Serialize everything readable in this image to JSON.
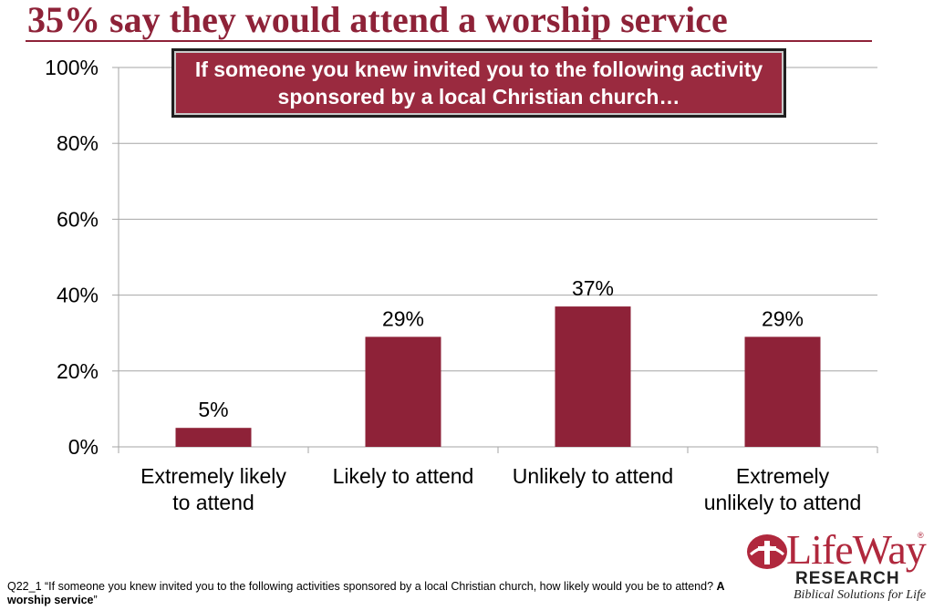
{
  "title": "35% say they would attend a worship service",
  "callout": "If someone you knew invited you to the following activity sponsored by a local Christian church…",
  "footnote": {
    "text": "Q22_1 “If someone you knew invited you to the following activities sponsored by a local Christian church, how likely would you be to attend? ",
    "bold": "A worship service",
    "close": "”"
  },
  "logo": {
    "name": "LifeWay",
    "reg": "®",
    "research": "RESEARCH",
    "tagline": "Biblical Solutions for Life",
    "icon": "church-cross-icon"
  },
  "colors": {
    "bar": "#8e2238",
    "title": "#8e2238",
    "callout_bg": "#9a2a3f",
    "grid": "#a6a6a6"
  },
  "chart_data": {
    "type": "bar",
    "title": "",
    "xlabel": "",
    "ylabel": "",
    "categories": [
      [
        "Extremely likely",
        "to attend"
      ],
      [
        "Likely to attend"
      ],
      [
        "Unlikely to attend"
      ],
      [
        "Extremely",
        "unlikely to attend"
      ]
    ],
    "values": [
      5,
      29,
      37,
      29
    ],
    "data_labels": [
      "5%",
      "29%",
      "37%",
      "29%"
    ],
    "yticks": [
      0,
      20,
      40,
      60,
      80,
      100
    ],
    "ytick_labels": [
      "0%",
      "20%",
      "40%",
      "60%",
      "80%",
      "100%"
    ],
    "ylim": [
      0,
      100
    ],
    "grid": true,
    "legend": "none"
  }
}
